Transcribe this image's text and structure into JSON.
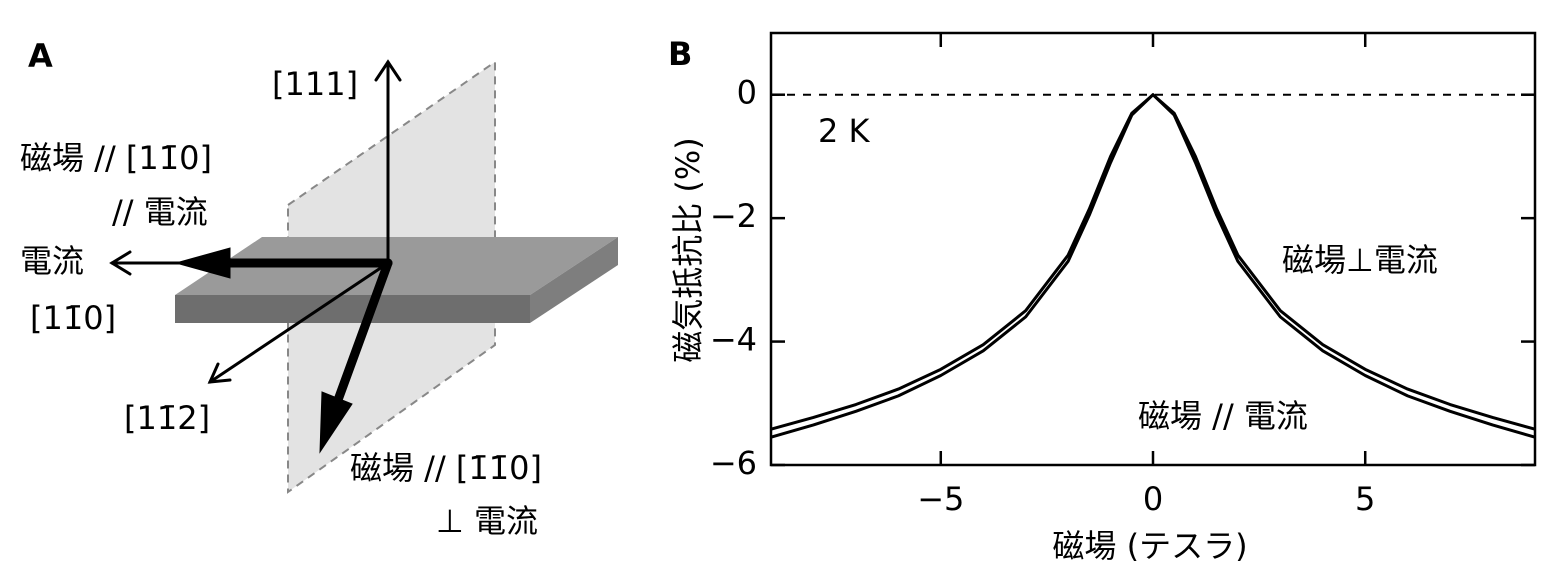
{
  "diagram": {
    "panel": "A",
    "labels": [
      "[111]",
      "磁場 // [11̄0]",
      "// 電流",
      "電流",
      "[11̄0]",
      "[11̄2]",
      "磁場 // [1̄1̄0]",
      "⊥ 電流"
    ]
  },
  "chart_data": {
    "type": "line",
    "panel": "B",
    "xlabel": "磁場 (テスラ)",
    "ylabel": "磁気抵抗比 (%)",
    "annotation": "2 K",
    "x": [
      -9,
      -8,
      -7,
      -6,
      -5,
      -4,
      -3,
      -2,
      -1.5,
      -1,
      -0.5,
      0,
      0.5,
      1,
      1.5,
      2,
      3,
      4,
      5,
      6,
      7,
      8,
      9
    ],
    "series": [
      {
        "name": "磁場⊥電流",
        "color": "#000000",
        "values": [
          -5.42,
          -5.23,
          -5.02,
          -4.77,
          -4.45,
          -4.05,
          -3.5,
          -2.6,
          -1.85,
          -1.0,
          -0.3,
          0,
          -0.3,
          -1.0,
          -1.85,
          -2.6,
          -3.5,
          -4.05,
          -4.45,
          -4.77,
          -5.02,
          -5.23,
          -5.42
        ]
      },
      {
        "name": "磁場 // 電流",
        "color": "#000000",
        "values": [
          -5.55,
          -5.35,
          -5.13,
          -4.88,
          -4.55,
          -4.15,
          -3.6,
          -2.7,
          -1.95,
          -1.1,
          -0.33,
          0,
          -0.33,
          -1.1,
          -1.95,
          -2.7,
          -3.6,
          -4.15,
          -4.55,
          -4.88,
          -5.13,
          -5.35,
          -5.55
        ]
      }
    ],
    "xlim": [
      -9,
      9
    ],
    "ylim": [
      -6,
      1
    ],
    "xticks": [
      {
        "value": -5,
        "label": "−5"
      },
      0,
      5
    ],
    "yticks": [
      0,
      {
        "value": -2,
        "label": "−2"
      },
      {
        "value": -4,
        "label": "−4"
      },
      {
        "value": -6,
        "label": "−6"
      }
    ],
    "reference_line": 0
  }
}
